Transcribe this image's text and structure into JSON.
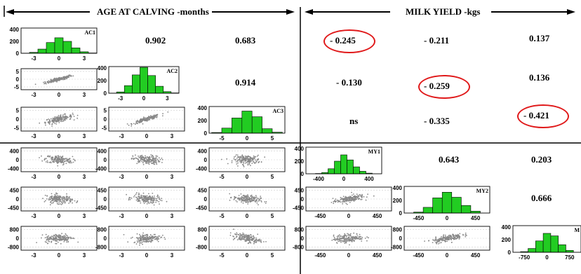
{
  "headers": {
    "left": "AGE AT CALVING -months",
    "right": "MILK YIELD -kgs"
  },
  "correlations": {
    "ac1_ac2": "0.902",
    "ac1_ac3": "0.683",
    "ac1_my1": "- 0.245",
    "ac1_my2": "- 0.211",
    "ac1_my3": "0.137",
    "ac2_ac3": "0.914",
    "ac2_my1": "- 0.130",
    "ac2_my2": "- 0.259",
    "ac2_my3": "0.136",
    "ac3_my1": "ns",
    "ac3_my2": "- 0.335",
    "ac3_my3": "- 0.421",
    "my1_my2": "0.643",
    "my1_my3": "0.203",
    "my2_my3": "0.666"
  },
  "highlight_color": "#e0191a",
  "bar_color": "#22cc22",
  "point_color": "#888888",
  "chart_data": [
    {
      "type": "bar",
      "title": "AC1",
      "categories": [
        -4,
        -3,
        -2,
        -1,
        0,
        1,
        2,
        3,
        4
      ],
      "values": [
        2,
        15,
        70,
        180,
        260,
        200,
        90,
        25,
        5
      ],
      "ylim": [
        0,
        400
      ],
      "yticks": [
        0,
        200,
        400
      ],
      "xticks": [
        -3,
        0,
        3
      ]
    },
    {
      "type": "bar",
      "title": "AC2",
      "categories": [
        -4,
        -3,
        -2,
        -1,
        0,
        1,
        2,
        3,
        4
      ],
      "values": [
        2,
        20,
        120,
        290,
        410,
        280,
        110,
        25,
        5
      ],
      "ylim": [
        0,
        400
      ],
      "yticks": [
        0,
        200,
        400
      ],
      "xticks": [
        -3,
        0,
        3
      ]
    },
    {
      "type": "bar",
      "title": "AC3",
      "categories": [
        -6,
        -4,
        -2,
        0,
        2,
        4,
        6
      ],
      "values": [
        10,
        80,
        240,
        350,
        260,
        70,
        15
      ],
      "ylim": [
        0,
        400
      ],
      "yticks": [
        0,
        200,
        400
      ],
      "xticks": [
        -5,
        0,
        5
      ]
    },
    {
      "type": "bar",
      "title": "MY1",
      "categories": [
        -400,
        -300,
        -200,
        -100,
        0,
        100,
        200,
        300,
        400
      ],
      "values": [
        5,
        20,
        80,
        200,
        300,
        220,
        110,
        40,
        10
      ],
      "ylim": [
        0,
        400
      ],
      "yticks": [
        0,
        200,
        400
      ],
      "xticks": [
        -400,
        0,
        400
      ]
    },
    {
      "type": "bar",
      "title": "MY2",
      "categories": [
        -450,
        -300,
        -150,
        0,
        150,
        300,
        450
      ],
      "values": [
        15,
        90,
        240,
        330,
        250,
        120,
        30
      ],
      "ylim": [
        0,
        400
      ],
      "yticks": [
        0,
        200,
        400
      ],
      "xticks": [
        -450,
        0,
        450
      ]
    },
    {
      "type": "bar",
      "title": "M",
      "categories": [
        -750,
        -500,
        -250,
        0,
        250,
        500,
        750
      ],
      "values": [
        10,
        60,
        180,
        300,
        260,
        120,
        30
      ],
      "ylim": [
        0,
        400
      ],
      "yticks": [
        0,
        200,
        400
      ],
      "xticks": [
        -750,
        0,
        750
      ]
    },
    {
      "type": "scatter",
      "pair": "AC2 vs AC1",
      "r": 0.902,
      "xticks": [
        -3,
        0,
        3
      ],
      "yticks": [
        5,
        0,
        -5
      ]
    },
    {
      "type": "scatter",
      "pair": "AC3 vs AC1",
      "r": 0.683,
      "xticks": [
        -3,
        0,
        3
      ],
      "yticks": [
        5,
        0,
        -5
      ]
    },
    {
      "type": "scatter",
      "pair": "AC3 vs AC2",
      "r": 0.914,
      "xticks": [
        -3,
        0,
        3
      ],
      "yticks": [
        5,
        0,
        -5
      ]
    },
    {
      "type": "scatter",
      "pair": "MY1 vs AC1",
      "r": -0.245,
      "xticks": [
        -3,
        0,
        3
      ],
      "yticks": [
        400,
        0,
        -400
      ]
    },
    {
      "type": "scatter",
      "pair": "MY1 vs AC2",
      "r": -0.13,
      "xticks": [
        -3,
        0,
        3
      ],
      "yticks": [
        400,
        0,
        -400
      ]
    },
    {
      "type": "scatter",
      "pair": "MY1 vs AC3",
      "r": 0.0,
      "xticks": [
        -5,
        0,
        5
      ],
      "yticks": [
        400,
        0,
        -400
      ]
    },
    {
      "type": "scatter",
      "pair": "MY2 vs AC1",
      "r": -0.211,
      "xticks": [
        -3,
        0,
        3
      ],
      "yticks": [
        450,
        0,
        -450
      ]
    },
    {
      "type": "scatter",
      "pair": "MY2 vs AC2",
      "r": -0.259,
      "xticks": [
        -3,
        0,
        3
      ],
      "yticks": [
        450,
        0,
        -450
      ]
    },
    {
      "type": "scatter",
      "pair": "MY2 vs AC3",
      "r": -0.335,
      "xticks": [
        -5,
        0,
        5
      ],
      "yticks": [
        450,
        0,
        -450
      ]
    },
    {
      "type": "scatter",
      "pair": "MY3 vs AC1",
      "r": 0.137,
      "xticks": [
        -3,
        0,
        3
      ],
      "yticks": [
        800,
        0,
        -800
      ]
    },
    {
      "type": "scatter",
      "pair": "MY3 vs AC2",
      "r": 0.136,
      "xticks": [
        -3,
        0,
        3
      ],
      "yticks": [
        800,
        0,
        -800
      ]
    },
    {
      "type": "scatter",
      "pair": "MY3 vs AC3",
      "r": -0.421,
      "xticks": [
        -5,
        0,
        5
      ],
      "yticks": [
        800,
        0,
        -800
      ]
    },
    {
      "type": "scatter",
      "pair": "MY2 vs MY1",
      "r": 0.643,
      "xticks": [
        -450,
        0,
        450
      ],
      "yticks": [
        450,
        0,
        -450
      ]
    },
    {
      "type": "scatter",
      "pair": "MY3 vs MY1",
      "r": 0.203,
      "xticks": [
        -450,
        0,
        450
      ],
      "yticks": [
        800,
        0,
        -800
      ]
    },
    {
      "type": "scatter",
      "pair": "MY3 vs MY2",
      "r": 0.666,
      "xticks": [
        -450,
        0,
        450
      ],
      "yticks": [
        800,
        0,
        -800
      ]
    }
  ]
}
